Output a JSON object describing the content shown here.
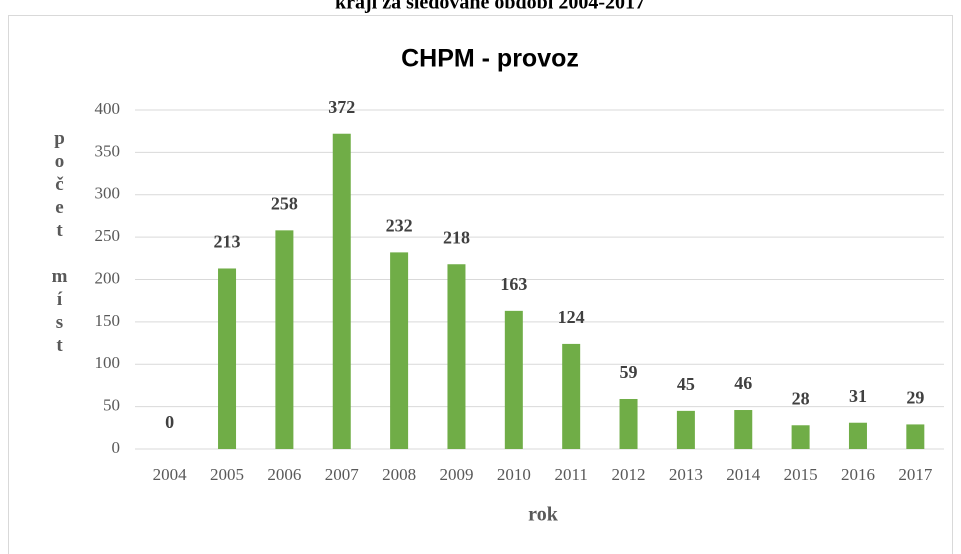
{
  "page_caption": "kraji za sledované období 2004-2017",
  "chart_data": {
    "type": "bar",
    "title": "CHPM - provoz",
    "x_label": "rok",
    "y_label": "počet míst",
    "categories": [
      "2004",
      "2005",
      "2006",
      "2007",
      "2008",
      "2009",
      "2010",
      "2011",
      "2012",
      "2013",
      "2014",
      "2015",
      "2016",
      "2017"
    ],
    "values": [
      0,
      213,
      258,
      372,
      232,
      218,
      163,
      124,
      59,
      45,
      46,
      28,
      31,
      29
    ],
    "color": "#70ad47",
    "ylim": [
      0,
      400
    ],
    "yticks": [
      0,
      50,
      100,
      150,
      200,
      250,
      300,
      350,
      400
    ],
    "grid": true
  }
}
